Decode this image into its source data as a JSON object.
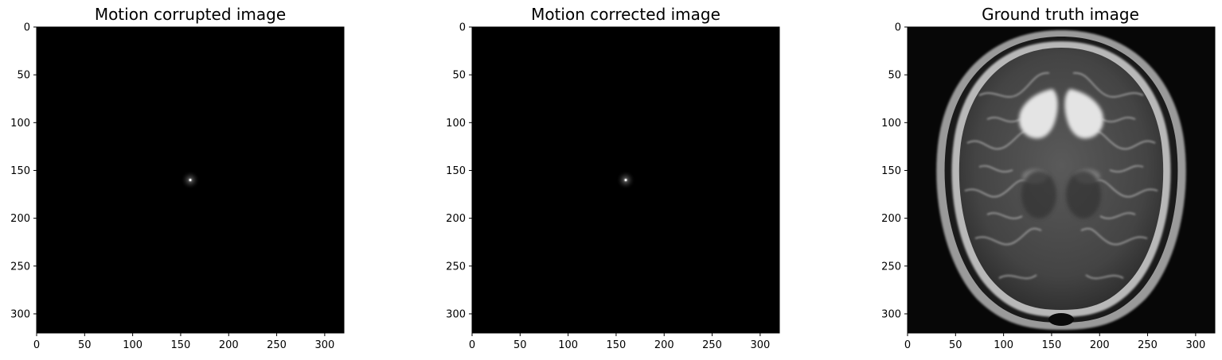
{
  "chart_data": [
    {
      "type": "heatmap",
      "title": "Motion corrupted image",
      "xlabel": "",
      "ylabel": "",
      "xlim": [
        0,
        320
      ],
      "ylim": [
        320,
        0
      ],
      "x_ticks": [
        0,
        50,
        100,
        150,
        200,
        250,
        300
      ],
      "y_ticks": [
        0,
        50,
        100,
        150,
        200,
        250,
        300
      ],
      "colormap": "gray",
      "content": "near-black field with a single faint bright point at the center",
      "bright_point": {
        "x": 160,
        "y": 160
      }
    },
    {
      "type": "heatmap",
      "title": "Motion corrected image",
      "xlabel": "",
      "ylabel": "",
      "xlim": [
        0,
        320
      ],
      "ylim": [
        320,
        0
      ],
      "x_ticks": [
        0,
        50,
        100,
        150,
        200,
        250,
        300
      ],
      "y_ticks": [
        0,
        50,
        100,
        150,
        200,
        250,
        300
      ],
      "colormap": "gray",
      "content": "near-black field with a single faint bright point at the center",
      "bright_point": {
        "x": 160,
        "y": 160
      }
    },
    {
      "type": "heatmap",
      "title": "Ground truth image",
      "xlabel": "",
      "ylabel": "",
      "xlim": [
        0,
        320
      ],
      "ylim": [
        320,
        0
      ],
      "x_ticks": [
        0,
        50,
        100,
        150,
        200,
        250,
        300
      ],
      "y_ticks": [
        0,
        50,
        100,
        150,
        200,
        250,
        300
      ],
      "colormap": "gray",
      "content": "axial T2-weighted brain MRI slice"
    }
  ]
}
